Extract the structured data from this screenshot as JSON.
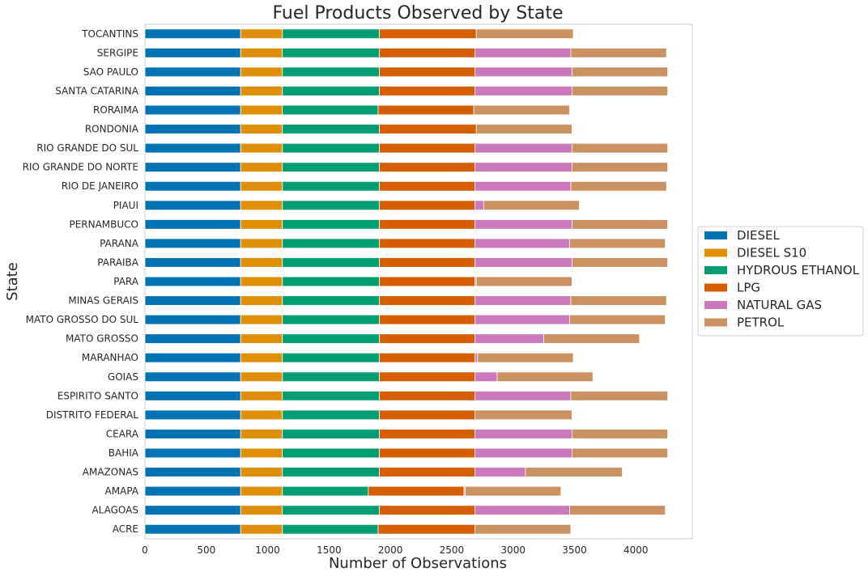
{
  "chart_data": {
    "type": "bar",
    "orientation": "horizontal",
    "stacked": true,
    "title": "Fuel Products Observed by State",
    "xlabel": "Number of Observations",
    "ylabel": "State",
    "xlim": [
      0,
      4460
    ],
    "xticks": [
      "0",
      "500",
      "1000",
      "1500",
      "2000",
      "2500",
      "3000",
      "3500",
      "4000"
    ],
    "grid": false,
    "legend_position": "right",
    "categories": [
      "ACRE",
      "ALAGOAS",
      "AMAPA",
      "AMAZONAS",
      "BAHIA",
      "CEARA",
      "DISTRITO FEDERAL",
      "ESPIRITO SANTO",
      "GOIAS",
      "MARANHAO",
      "MATO GROSSO",
      "MATO GROSSO DO SUL",
      "MINAS GERAIS",
      "PARA",
      "PARAIBA",
      "PARANA",
      "PERNAMBUCO",
      "PIAUI",
      "RIO DE JANEIRO",
      "RIO GRANDE DO NORTE",
      "RIO GRANDE DO SUL",
      "RONDONIA",
      "RORAIMA",
      "SANTA CATARINA",
      "SAO PAULO",
      "SERGIPE",
      "TOCANTINS"
    ],
    "series": [
      {
        "name": "DIESEL",
        "color": "#0173b2",
        "values": [
          780,
          780,
          780,
          780,
          780,
          780,
          780,
          780,
          780,
          780,
          780,
          780,
          780,
          780,
          780,
          780,
          780,
          780,
          780,
          780,
          780,
          780,
          780,
          780,
          780,
          780,
          780
        ]
      },
      {
        "name": "DIESEL S10",
        "color": "#de8f05",
        "values": [
          340,
          340,
          340,
          340,
          340,
          340,
          340,
          340,
          340,
          340,
          340,
          340,
          340,
          340,
          340,
          340,
          340,
          340,
          340,
          340,
          340,
          340,
          340,
          340,
          340,
          340,
          340
        ]
      },
      {
        "name": "HYDROUS ETHANOL",
        "color": "#029e73",
        "values": [
          780,
          790,
          700,
          790,
          790,
          790,
          790,
          790,
          790,
          790,
          790,
          790,
          790,
          790,
          790,
          790,
          790,
          790,
          790,
          790,
          790,
          790,
          780,
          790,
          790,
          790,
          790
        ]
      },
      {
        "name": "LPG",
        "color": "#d55e00",
        "values": [
          790,
          780,
          780,
          780,
          780,
          780,
          780,
          780,
          780,
          780,
          780,
          780,
          780,
          780,
          780,
          780,
          780,
          780,
          780,
          780,
          780,
          790,
          780,
          780,
          780,
          780,
          790
        ]
      },
      {
        "name": "NATURAL GAS",
        "color": "#cc78bc",
        "values": [
          0,
          770,
          10,
          410,
          790,
          790,
          0,
          780,
          180,
          20,
          560,
          770,
          780,
          10,
          790,
          770,
          790,
          70,
          780,
          790,
          790,
          0,
          0,
          790,
          790,
          780,
          0
        ]
      },
      {
        "name": "PETROL",
        "color": "#ca9161",
        "values": [
          780,
          780,
          780,
          790,
          780,
          780,
          790,
          790,
          780,
          780,
          780,
          780,
          780,
          780,
          780,
          780,
          780,
          780,
          780,
          780,
          780,
          780,
          780,
          780,
          780,
          780,
          790
        ]
      }
    ]
  }
}
